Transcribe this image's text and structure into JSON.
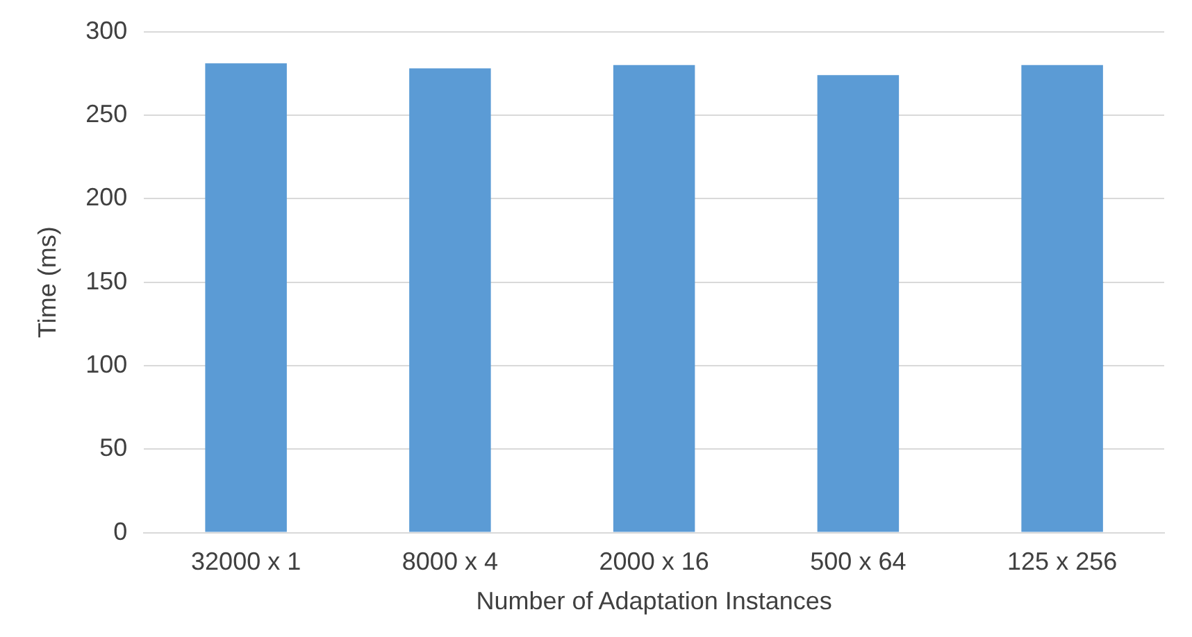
{
  "chart_data": {
    "type": "bar",
    "xlabel": "Number of Adaptation Instances",
    "ylabel": "Time (ms)",
    "categories": [
      "32000 x 1",
      "8000 x 4",
      "2000 x 16",
      "500 x 64",
      "125 x 256"
    ],
    "series": [
      {
        "color": "#5b9bd5",
        "values": [
          281,
          278,
          280,
          274,
          280
        ]
      }
    ],
    "ylim": [
      0,
      300
    ],
    "yticks": [
      0,
      50,
      100,
      150,
      200,
      250,
      300
    ],
    "grid": "y"
  }
}
